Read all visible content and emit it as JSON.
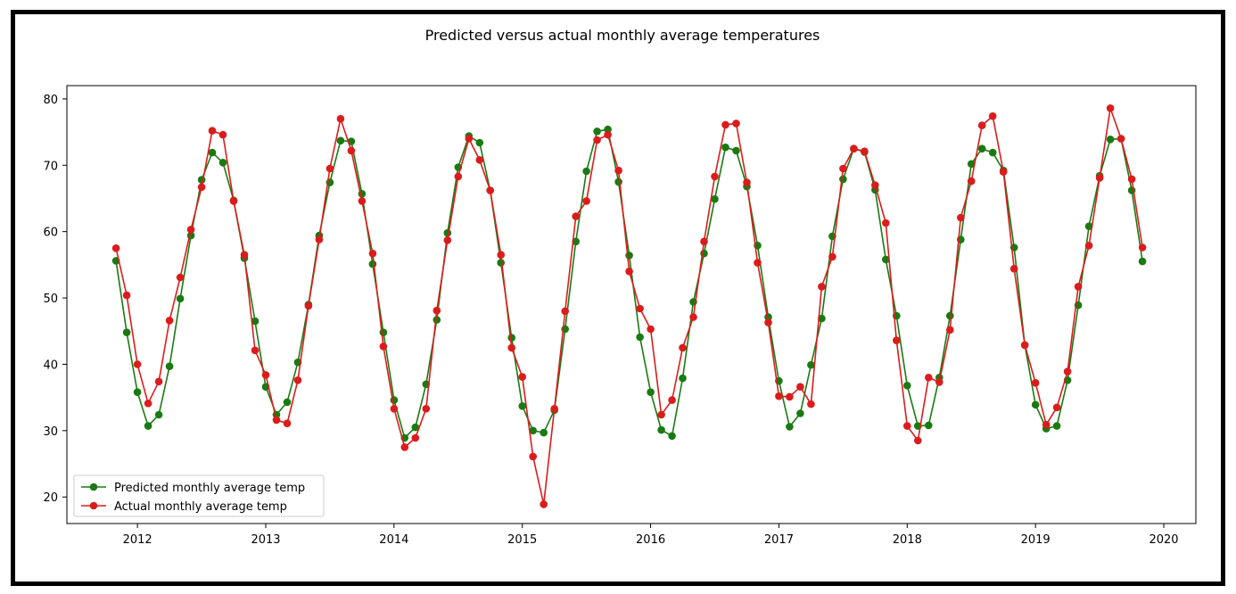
{
  "chart_data": {
    "type": "line",
    "title": "Predicted versus actual monthly average temperatures",
    "xlabel": "",
    "ylabel": "",
    "xlim": [
      2011.45,
      2020.25
    ],
    "ylim": [
      16,
      82
    ],
    "x_ticks": [
      "2012",
      "2013",
      "2014",
      "2015",
      "2016",
      "2017",
      "2018",
      "2019",
      "2020"
    ],
    "y_ticks": [
      "20",
      "30",
      "40",
      "50",
      "60",
      "70",
      "80"
    ],
    "x_start": "2011-11",
    "x_step": "1 month",
    "grid": false,
    "legend_position": "lower-left",
    "series": [
      {
        "name": "Predicted monthly average temp",
        "color": "#1a7a12",
        "values": [
          55.6,
          44.8,
          35.8,
          30.7,
          32.4,
          39.7,
          49.9,
          59.4,
          67.8,
          71.9,
          70.4,
          64.7,
          56.0,
          46.5,
          36.6,
          32.4,
          34.3,
          40.3,
          49.0,
          59.4,
          67.4,
          73.7,
          73.6,
          65.7,
          55.1,
          44.8,
          34.6,
          28.9,
          30.5,
          37.0,
          46.7,
          59.8,
          69.7,
          74.4,
          73.4,
          66.2,
          55.3,
          44.0,
          33.7,
          30.0,
          29.7,
          33.1,
          45.3,
          58.5,
          69.1,
          75.1,
          75.4,
          67.5,
          56.4,
          44.1,
          35.8,
          30.1,
          29.2,
          37.9,
          49.4,
          56.7,
          64.9,
          72.7,
          72.2,
          66.8,
          57.9,
          47.1,
          37.5,
          30.6,
          32.6,
          39.9,
          46.9,
          59.3,
          67.9,
          72.5,
          72.0,
          66.3,
          55.8,
          47.3,
          36.8,
          30.7,
          30.8,
          38.0,
          47.3,
          58.8,
          70.2,
          72.5,
          71.9,
          69.2,
          57.6,
          42.9,
          33.9,
          30.3,
          30.7,
          37.6,
          48.9,
          60.8,
          68.4,
          73.9,
          74.0,
          66.2,
          55.5
        ]
      },
      {
        "name": "Actual monthly average temp",
        "color": "#dc1c1c",
        "values": [
          57.5,
          50.4,
          40.0,
          34.1,
          37.4,
          46.6,
          53.1,
          60.3,
          66.7,
          75.2,
          74.6,
          64.6,
          56.5,
          42.1,
          38.4,
          31.6,
          31.1,
          37.6,
          48.8,
          58.8,
          69.5,
          77.0,
          72.2,
          64.6,
          56.7,
          42.7,
          33.3,
          27.5,
          28.9,
          33.3,
          48.1,
          58.7,
          68.3,
          74.0,
          70.8,
          66.2,
          56.5,
          42.5,
          38.1,
          26.1,
          18.9,
          33.3,
          48.0,
          62.3,
          64.6,
          73.8,
          74.6,
          69.2,
          54.0,
          48.4,
          45.3,
          32.4,
          34.6,
          42.5,
          47.1,
          58.5,
          68.3,
          76.1,
          76.3,
          67.4,
          55.3,
          46.3,
          35.2,
          35.1,
          36.6,
          34.0,
          51.7,
          56.2,
          69.5,
          72.5,
          72.1,
          67.0,
          61.3,
          43.6,
          30.7,
          28.5,
          38.0,
          37.3,
          45.2,
          62.1,
          67.6,
          76.0,
          77.4,
          69.0,
          54.4,
          42.9,
          37.2,
          30.9,
          33.5,
          38.9,
          51.7,
          57.9,
          68.1,
          78.6,
          74.0,
          67.9,
          57.6
        ]
      }
    ]
  }
}
